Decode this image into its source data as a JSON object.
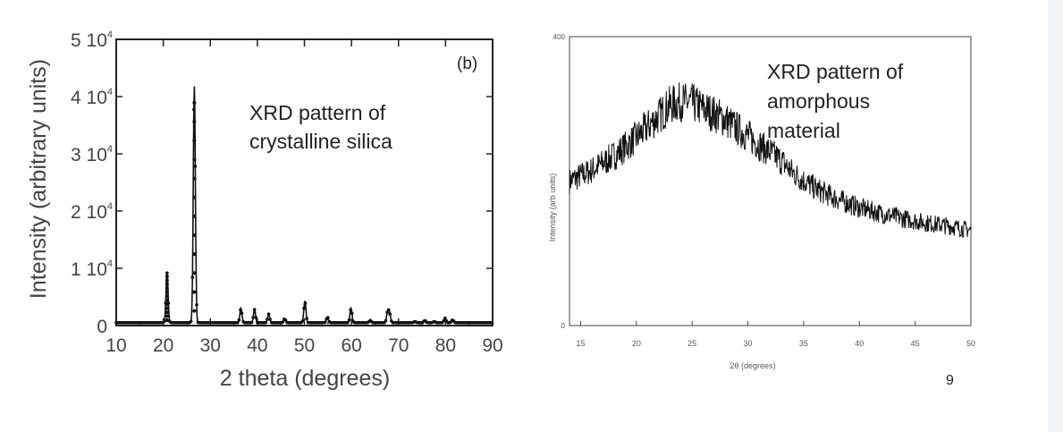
{
  "page_number": "9",
  "chart_data": [
    {
      "type": "line",
      "annotation_panel": "(b)",
      "annotation_text": [
        "XRD pattern of",
        "crystalline silica"
      ],
      "xlabel": "2 theta (degrees)",
      "ylabel": "Intensity (arbitrary units)",
      "xlim": [
        10,
        90
      ],
      "ylim": [
        0,
        50000
      ],
      "x_ticks": [
        "10",
        "20",
        "30",
        "40",
        "50",
        "60",
        "70",
        "80",
        "90"
      ],
      "y_ticks": [
        {
          "value": 0,
          "mantissa": "0",
          "exponent": ""
        },
        {
          "value": 10000,
          "mantissa": "1 10",
          "exponent": "4"
        },
        {
          "value": 20000,
          "mantissa": "2 10",
          "exponent": "4"
        },
        {
          "value": 30000,
          "mantissa": "3 10",
          "exponent": "4"
        },
        {
          "value": 40000,
          "mantissa": "4 10",
          "exponent": "4"
        },
        {
          "value": 50000,
          "mantissa": "5 10",
          "exponent": "4"
        }
      ],
      "grid": false,
      "marker": "dot",
      "peaks": [
        {
          "x": 20.8,
          "y": 9200
        },
        {
          "x": 26.6,
          "y": 41800
        },
        {
          "x": 36.5,
          "y": 3000
        },
        {
          "x": 39.4,
          "y": 2800
        },
        {
          "x": 42.4,
          "y": 2000
        },
        {
          "x": 45.8,
          "y": 1200
        },
        {
          "x": 50.1,
          "y": 4300
        },
        {
          "x": 54.9,
          "y": 1500
        },
        {
          "x": 59.9,
          "y": 3000
        },
        {
          "x": 64.0,
          "y": 900
        },
        {
          "x": 67.7,
          "y": 2400
        },
        {
          "x": 68.1,
          "y": 2000
        },
        {
          "x": 73.5,
          "y": 700
        },
        {
          "x": 75.6,
          "y": 900
        },
        {
          "x": 77.6,
          "y": 700
        },
        {
          "x": 79.9,
          "y": 1300
        },
        {
          "x": 81.5,
          "y": 1000
        }
      ],
      "baseline": 500
    },
    {
      "type": "line",
      "annotation_text": [
        "XRD pattern of",
        "amorphous",
        "material"
      ],
      "xlabel": "2θ (degrees)",
      "ylabel": "Intensity (arb units)",
      "xlim": [
        14,
        50
      ],
      "ylim": [
        0,
        400
      ],
      "x_ticks": [
        "15",
        "20",
        "25",
        "30",
        "35",
        "40",
        "45",
        "50"
      ],
      "y_ticks": [
        "0",
        "400"
      ],
      "grid": false,
      "x": [
        14,
        16,
        18,
        20,
        22,
        23,
        24,
        25,
        26,
        27,
        28,
        29,
        30,
        31,
        32,
        33,
        34,
        36,
        38,
        40,
        42,
        44,
        46,
        48,
        50
      ],
      "y": [
        200,
        215,
        235,
        260,
        290,
        305,
        310,
        308,
        300,
        293,
        285,
        273,
        263,
        250,
        240,
        228,
        212,
        190,
        175,
        163,
        155,
        148,
        142,
        138,
        132
      ]
    }
  ]
}
